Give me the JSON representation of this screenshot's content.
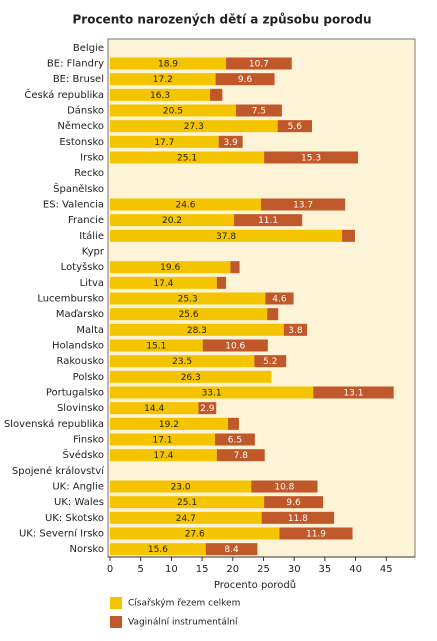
{
  "chart_data": {
    "type": "stacked-barh",
    "title": "Procento narozených dětí a způsobu porodu",
    "xlabel": "Procento porodů",
    "categories": [
      "Belgie",
      "BE: Flandry",
      "BE: Brusel",
      "Česká republika",
      "Dánsko",
      "Německo",
      "Estonsko",
      "Irsko",
      "Recko",
      "Španělsko",
      "ES:  Valencia",
      "Francie",
      "Itálie",
      "Kypr",
      "Lotyšsko",
      "Litva",
      "Lucembursko",
      "Maďarsko",
      "Malta",
      "Holandsko",
      "Rakousko",
      "Polsko",
      "Portugalsko",
      "Slovinsko",
      "Slovenská republika",
      "Finsko",
      "Švédsko",
      "Spojené království",
      "UK: Anglie",
      "UK: Wales",
      "UK: Skotsko",
      "UK: Severní Irsko",
      "Norsko"
    ],
    "series": [
      {
        "name": "Císařským řezem celkem",
        "color": "#f5c400",
        "values": [
          null,
          18.9,
          17.2,
          16.3,
          20.5,
          27.3,
          17.7,
          25.1,
          null,
          null,
          24.6,
          20.2,
          37.8,
          null,
          19.6,
          17.4,
          25.3,
          25.6,
          28.3,
          15.1,
          23.5,
          26.3,
          33.1,
          14.4,
          19.2,
          17.1,
          17.4,
          null,
          23.0,
          25.1,
          24.7,
          27.6,
          15.6
        ],
        "value_labels": [
          null,
          "18.9",
          "17.2",
          "16.3",
          "20.5",
          "27.3",
          "17.7",
          "25.1",
          null,
          null,
          "24.6",
          "20.2",
          "37.8",
          null,
          "19.6",
          "17.4",
          "25.3",
          "25.6",
          "28.3",
          "15.1",
          "23.5",
          "26.3",
          "33.1",
          "14.4",
          "19.2",
          "17.1",
          "17.4",
          null,
          "23.0",
          "25.1",
          "24.7",
          "27.6",
          "15.6"
        ]
      },
      {
        "name": "Vaginální instrumentální",
        "color": "#c0582a",
        "values": [
          null,
          10.7,
          9.6,
          2.0,
          7.5,
          5.6,
          3.9,
          15.3,
          null,
          null,
          13.7,
          11.1,
          2.1,
          null,
          1.5,
          1.5,
          4.6,
          1.8,
          3.8,
          10.6,
          5.2,
          null,
          13.1,
          2.9,
          1.8,
          6.5,
          7.8,
          null,
          10.8,
          9.6,
          11.8,
          11.9,
          8.4
        ],
        "value_labels": [
          null,
          "10.7",
          "9.6",
          null,
          "7.5",
          "5.6",
          "3.9",
          "15.3",
          null,
          null,
          "13.7",
          "11.1",
          null,
          null,
          null,
          null,
          "4.6",
          null,
          "3.8",
          "10.6",
          "5.2",
          null,
          "13.1",
          "2.9",
          null,
          "6.5",
          "7.8",
          null,
          "10.8",
          "9.6",
          "11.8",
          "11.9",
          "8.4"
        ]
      }
    ],
    "xlim": [
      0,
      50
    ],
    "xticks": [
      0,
      5,
      10,
      15,
      20,
      25,
      30,
      35,
      40,
      45
    ]
  }
}
